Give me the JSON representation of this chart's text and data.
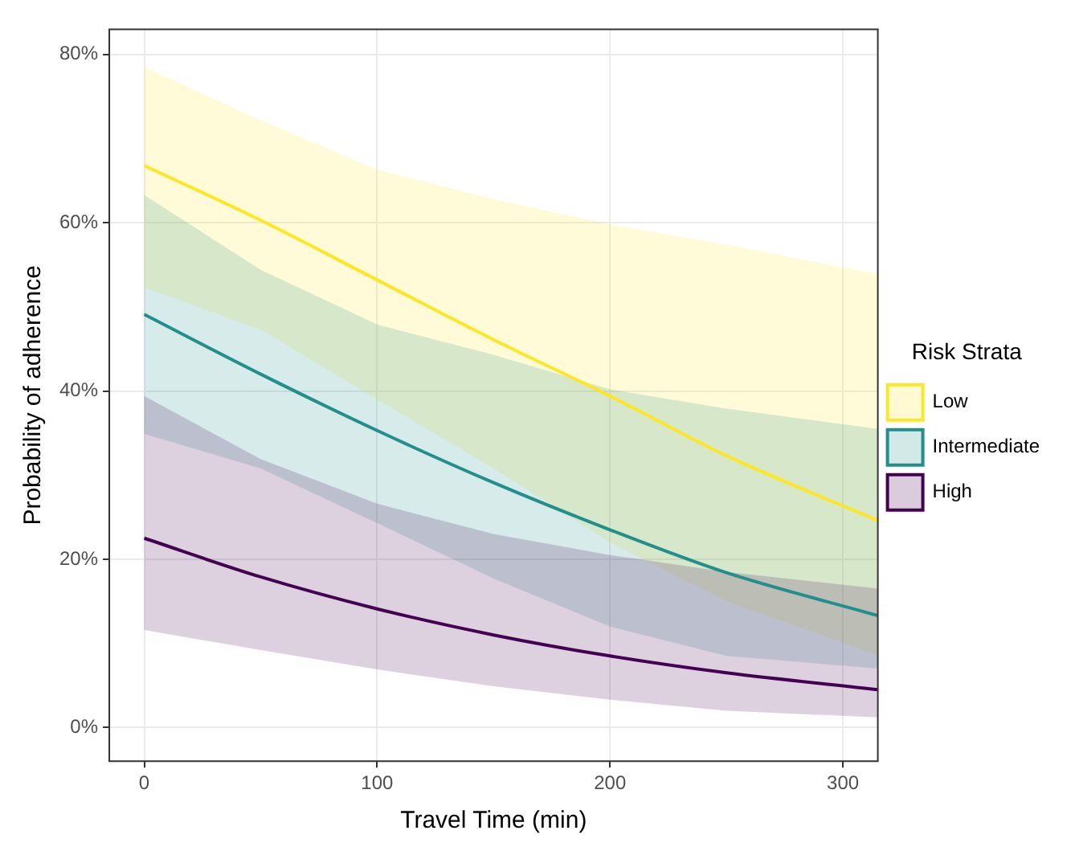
{
  "chart_data": {
    "type": "line",
    "xlabel": "Travel Time (min)",
    "ylabel": "Probability of adherence",
    "legend_title": "Risk Strata",
    "legend": "right",
    "grid": true,
    "x": [
      0,
      50,
      100,
      150,
      200,
      250,
      315
    ],
    "xlim": [
      -15,
      315
    ],
    "xticks": [
      0,
      100,
      200,
      300
    ],
    "ylim": [
      -4,
      83
    ],
    "yticks": [
      {
        "value": 0,
        "label": "0%"
      },
      {
        "value": 20,
        "label": "20%"
      },
      {
        "value": 40,
        "label": "40%"
      },
      {
        "value": 60,
        "label": "60%"
      },
      {
        "value": 80,
        "label": "80%"
      }
    ],
    "series": [
      {
        "name": "Low",
        "color": "#fde725",
        "values": [
          66.8,
          60.3,
          53.2,
          46.1,
          39.4,
          32.3,
          24.6
        ],
        "lower": [
          52.3,
          47.3,
          39.0,
          30.8,
          22.0,
          15.0,
          8.6
        ],
        "upper": [
          78.5,
          72.2,
          66.3,
          62.8,
          59.8,
          57.4,
          53.9
        ]
      },
      {
        "name": "Intermediate",
        "color": "#21908c",
        "values": [
          49.1,
          42.0,
          35.3,
          29.1,
          23.5,
          18.4,
          13.3
        ],
        "lower": [
          34.9,
          30.8,
          24.3,
          17.7,
          12.0,
          8.5,
          7.0
        ],
        "upper": [
          63.3,
          54.4,
          47.9,
          44.3,
          40.2,
          37.9,
          35.5
        ]
      },
      {
        "name": "High",
        "color": "#440154",
        "values": [
          22.5,
          17.9,
          14.1,
          11.0,
          8.5,
          6.5,
          4.5
        ],
        "lower": [
          11.6,
          9.2,
          6.9,
          4.9,
          3.3,
          2.0,
          1.2
        ],
        "upper": [
          39.4,
          31.9,
          26.6,
          23.0,
          20.5,
          18.5,
          16.5
        ]
      }
    ]
  }
}
